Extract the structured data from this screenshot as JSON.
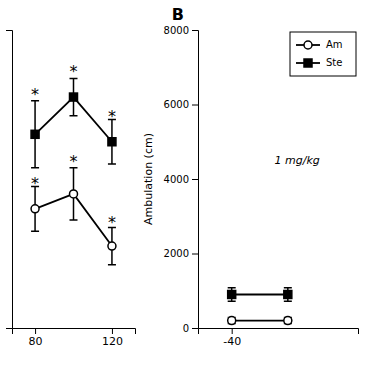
{
  "chart_data": [
    {
      "type": "line",
      "x": [
        80,
        100,
        120
      ],
      "series": [
        {
          "color": "black",
          "marker": "circle-open",
          "values": [
            3200,
            3600,
            2200
          ],
          "errors": [
            600,
            700,
            500
          ]
        },
        {
          "color": "black",
          "marker": "square",
          "values": [
            5200,
            6200,
            5000
          ],
          "errors": [
            900,
            500,
            600
          ]
        }
      ],
      "annotations": [
        {
          "text": "*",
          "x": 80,
          "y": 4000
        },
        {
          "text": "*",
          "x": 100,
          "y": 4600
        },
        {
          "text": "*",
          "x": 120,
          "y": 2950
        },
        {
          "text": "*",
          "x": 80,
          "y": 6400
        },
        {
          "text": "*",
          "x": 100,
          "y": 7000
        },
        {
          "text": "*",
          "x": 120,
          "y": 5800
        }
      ],
      "xlim": [
        68,
        132
      ],
      "xticks": [
        80,
        120
      ],
      "ylim": [
        0,
        8000
      ],
      "tick_labels": "x"
    },
    {
      "type": "line",
      "title": "B",
      "x": [
        -40,
        -20
      ],
      "series": [
        {
          "name": "Am",
          "color": "black",
          "marker": "circle-open",
          "values": [
            200,
            200
          ],
          "errors": [
            80,
            80
          ]
        },
        {
          "name": "Ste",
          "color": "black",
          "marker": "square",
          "values": [
            900,
            900
          ],
          "errors": [
            180,
            180
          ]
        }
      ],
      "annotations": [
        {
          "text": "1 mg/kg"
        }
      ],
      "xlim": [
        -52,
        5
      ],
      "xticks": [
        -40
      ],
      "ylim": [
        0,
        8000
      ],
      "yticks": [
        0,
        2000,
        4000,
        6000,
        8000
      ],
      "ylabel": "Ambulation (cm)",
      "legend": "top-right"
    }
  ]
}
